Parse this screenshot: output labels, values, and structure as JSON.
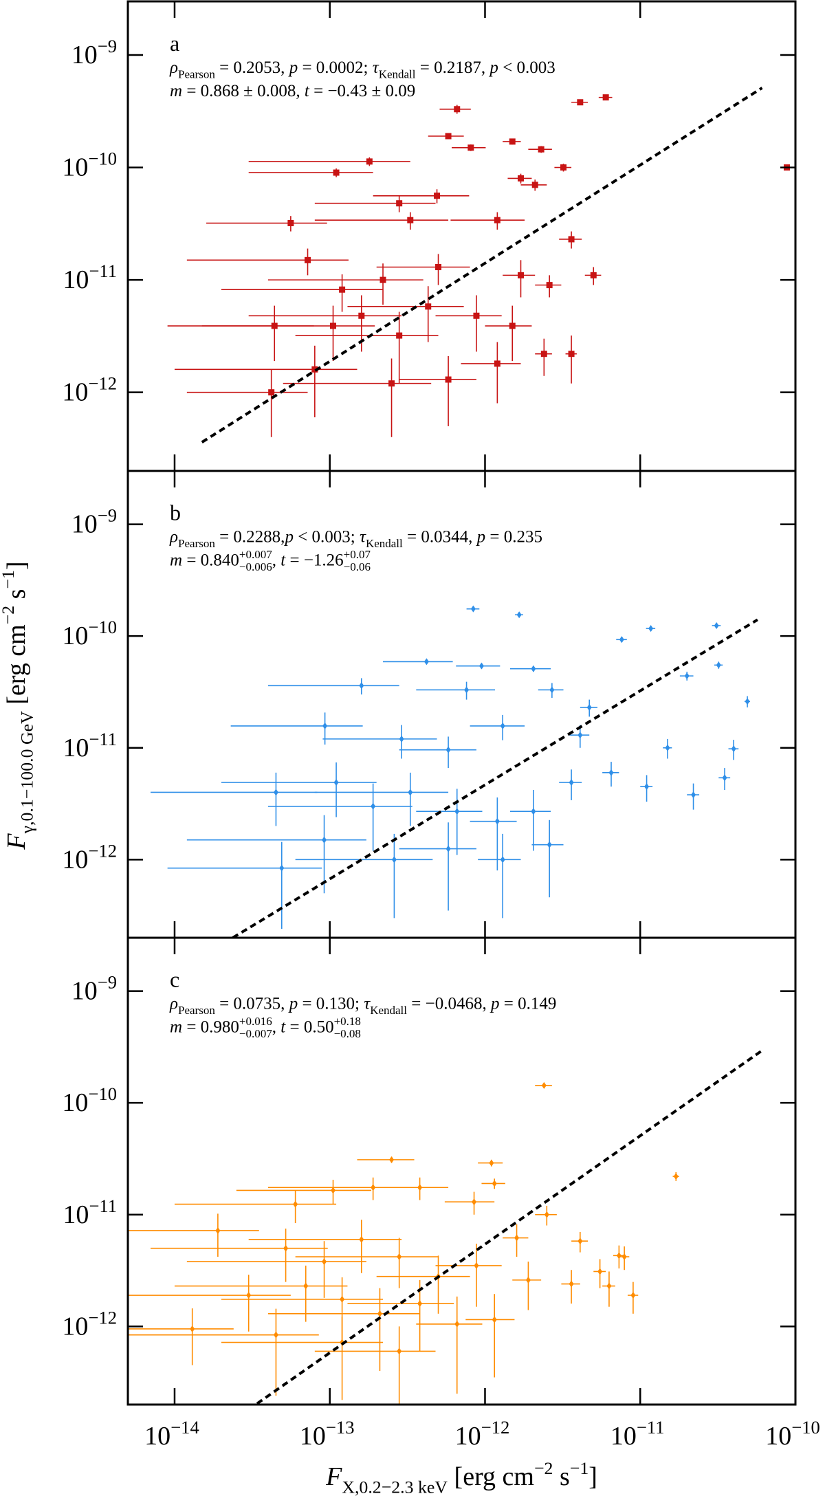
{
  "chart_data": [
    {
      "type": "scatter",
      "label": "a",
      "color": "#c81414",
      "marker": "square",
      "xscale": "log",
      "yscale": "log",
      "xlim": [
        5e-15,
        1e-10
      ],
      "ylim": [
        2e-13,
        3e-09
      ],
      "xticks": [
        1e-14,
        1e-13,
        1e-12,
        1e-11,
        1e-10
      ],
      "yticks": [
        {
          "value": 1e-12,
          "label": "10−12"
        },
        {
          "value": 1e-11,
          "label": "10−11"
        },
        {
          "value": 1e-10,
          "label": "10−10"
        },
        {
          "value": 1e-09,
          "label": "10−9"
        }
      ],
      "stats": [
        [
          {
            "text": "ρ",
            "style": "i"
          },
          {
            "text": "Pearson",
            "style": "sub"
          },
          {
            "text": " = 0.2053, ",
            "style": "n"
          },
          {
            "text": "p",
            "style": "i"
          },
          {
            "text": " = 0.0002; ",
            "style": "n"
          },
          {
            "text": "τ",
            "style": "i"
          },
          {
            "text": "Kendall",
            "style": "sub"
          },
          {
            "text": " = 0.2187, ",
            "style": "n"
          },
          {
            "text": "p",
            "style": "i"
          },
          {
            "text": " < 0.003",
            "style": "n"
          }
        ],
        [
          {
            "text": "m",
            "style": "i"
          },
          {
            "text": " = 0.868 ± 0.008, ",
            "style": "n"
          },
          {
            "text": "t",
            "style": "i"
          },
          {
            "text": " = −0.43 ± 0.09",
            "style": "n"
          }
        ]
      ],
      "fit": {
        "x": [
          1.5e-14,
          6.1e-11
        ],
        "y": [
          3.6e-13,
          5.1e-10
        ]
      },
      "x": [
        6.6e-13,
        4.1e-12,
        6e-12,
        8.8e-11,
        5.8e-13,
        1.5e-12,
        8.1e-13,
        2.3e-12,
        1.8e-13,
        1.1e-13,
        3.2e-12,
        1.7e-12,
        2.1e-12,
        4.9e-13,
        2.8e-13,
        5.6e-14,
        3.3e-13,
        1.2e-12,
        3.6e-12,
        1.7e-12,
        2.6e-12,
        5e-12,
        7.2e-14,
        2.2e-13,
        5e-13,
        4.4e-14,
        1.05e-13,
        1.6e-13,
        2.8e-13,
        4.3e-13,
        8.8e-13,
        1.5e-12,
        3.6e-12,
        2.4e-12,
        4.2e-14,
        8e-14,
        2.5e-13,
        5.8e-13,
        1.2e-12,
        1.2e-13
      ],
      "y": [
        3.3e-10,
        3.8e-10,
        4.2e-10,
        1e-10,
        1.9e-10,
        1.7e-10,
        1.5e-10,
        1.45e-10,
        1.13e-10,
        9e-11,
        1e-10,
        8e-11,
        7e-11,
        5.6e-11,
        4.8e-11,
        3.2e-11,
        3.4e-11,
        3.4e-11,
        2.3e-11,
        1.1e-11,
        9e-12,
        1.1e-11,
        1.5e-11,
        1e-11,
        1.3e-11,
        3.9e-12,
        3.9e-12,
        4.8e-12,
        3.2e-12,
        5.8e-12,
        4.8e-12,
        3.9e-12,
        2.2e-12,
        2.2e-12,
        1e-12,
        1.6e-12,
        1.2e-12,
        1.3e-12,
        1.8e-12,
        8.2e-12
      ],
      "xerr": [
        1.5e-13,
        5e-13,
        6e-13,
        5e-12,
        1.5e-13,
        2e-13,
        2e-13,
        4e-13,
        1.5e-13,
        8e-14,
        4e-13,
        3e-13,
        4e-13,
        3e-13,
        2e-13,
        4e-14,
        2.5e-13,
        6e-13,
        6e-13,
        4e-13,
        5e-13,
        6e-13,
        6e-14,
        1.8e-13,
        3e-13,
        3.5e-14,
        9e-14,
        1.3e-13,
        2.2e-13,
        3e-13,
        4e-13,
        5e-13,
        3e-13,
        3e-13,
        3e-14,
        7e-14,
        2e-13,
        3e-13,
        5e-13,
        1e-13
      ],
      "yerr": [
        3e-11,
        2e-11,
        2e-11,
        5e-12,
        1e-11,
        1e-11,
        1e-11,
        1e-11,
        1e-11,
        8e-12,
        8e-12,
        8e-12,
        8e-12,
        8e-12,
        8e-12,
        5e-12,
        6e-12,
        6e-12,
        4e-12,
        4e-12,
        2e-12,
        2e-12,
        4e-12,
        4e-12,
        4e-12,
        2e-12,
        2e-12,
        2.5e-12,
        2e-12,
        3e-12,
        2.5e-12,
        2e-12,
        1e-12,
        8e-13,
        6e-13,
        1e-12,
        8e-13,
        8e-13,
        1e-12,
        3e-12
      ]
    },
    {
      "type": "scatter",
      "label": "b",
      "color": "#2f8fe8",
      "marker": "diamond",
      "xscale": "log",
      "yscale": "log",
      "xlim": [
        5e-15,
        1e-10
      ],
      "ylim": [
        2e-13,
        3e-09
      ],
      "xticks": [
        1e-14,
        1e-13,
        1e-12,
        1e-11,
        1e-10
      ],
      "yticks": [
        {
          "value": 1e-12,
          "label": "10−12"
        },
        {
          "value": 1e-11,
          "label": "10−11"
        },
        {
          "value": 1e-10,
          "label": "10−10"
        },
        {
          "value": 1e-09,
          "label": "10−9"
        }
      ],
      "stats": [
        [
          {
            "text": "ρ",
            "style": "i"
          },
          {
            "text": "Pearson",
            "style": "sub"
          },
          {
            "text": " = 0.2288,",
            "style": "n"
          },
          {
            "text": "p",
            "style": "i"
          },
          {
            "text": " < 0.003; ",
            "style": "n"
          },
          {
            "text": "τ",
            "style": "i"
          },
          {
            "text": "Kendall",
            "style": "sub"
          },
          {
            "text": " = 0.0344, ",
            "style": "n"
          },
          {
            "text": "p",
            "style": "i"
          },
          {
            "text": " = 0.235",
            "style": "n"
          }
        ],
        [
          {
            "text": "m",
            "style": "i"
          },
          {
            "text": " = 0.840",
            "style": "n"
          },
          {
            "text": "+0.007",
            "style": "sup"
          },
          {
            "text": "−0.006",
            "style": "sub2"
          },
          {
            "text": ", ",
            "style": "n"
          },
          {
            "text": "t",
            "style": "i"
          },
          {
            "text": " = −1.26",
            "style": "n"
          },
          {
            "text": "+0.07",
            "style": "sup"
          },
          {
            "text": "−0.06",
            "style": "sub2"
          }
        ]
      ],
      "fit": {
        "x": [
          2.37e-14,
          5.7e-11
        ],
        "y": [
          2e-13,
          1.4e-10
        ]
      },
      "x": [
        8.4e-13,
        1.66e-12,
        1.17e-11,
        7.6e-12,
        3.1e-11,
        4.2e-13,
        9.5e-13,
        2.05e-12,
        3.2e-11,
        2e-11,
        4.9e-11,
        1.6e-13,
        7.6e-13,
        2.7e-12,
        4.7e-12,
        9.3e-14,
        2.9e-13,
        5.8e-13,
        1.3e-12,
        4.1e-12,
        1.5e-11,
        4e-11,
        4.5e-14,
        1.1e-13,
        1.9e-13,
        3.3e-13,
        6.6e-13,
        1.2e-12,
        2.05e-12,
        3.6e-12,
        6.5e-12,
        1.1e-11,
        2.2e-11,
        3.5e-11,
        4.9e-14,
        9.2e-14,
        2.6e-13,
        5.8e-13,
        1.3e-12,
        2.6e-12
      ],
      "y": [
        1.75e-10,
        1.55e-10,
        1.17e-10,
        9.3e-11,
        1.24e-10,
        5.9e-11,
        5.4e-11,
        5.1e-11,
        5.5e-11,
        4.4e-11,
        2.6e-11,
        3.6e-11,
        3.3e-11,
        3.3e-11,
        2.3e-11,
        1.57e-11,
        1.2e-11,
        9.6e-12,
        1.57e-11,
        1.3e-11,
        1e-11,
        9.8e-12,
        4e-12,
        4.9e-12,
        3e-12,
        4e-12,
        2.7e-12,
        2.2e-12,
        2.7e-12,
        4.9e-12,
        6e-12,
        4.5e-12,
        3.8e-12,
        5.4e-12,
        8.4e-13,
        1.5e-12,
        1e-12,
        1.25e-12,
        1e-12,
        1.36e-12
      ],
      "xerr": [
        8e-14,
        1e-13,
        8e-13,
        6e-13,
        2e-12,
        2e-13,
        3e-13,
        6e-13,
        2e-12,
        2e-12,
        2e-12,
        1.2e-13,
        4e-13,
        5e-13,
        6e-13,
        7e-14,
        2e-13,
        3e-13,
        5e-13,
        6e-13,
        1e-12,
        3e-12,
        3.8e-14,
        9e-14,
        1.5e-13,
        2.5e-13,
        3e-13,
        4e-13,
        6e-13,
        6e-13,
        8e-13,
        1e-12,
        2e-12,
        3e-12,
        4e-14,
        8e-14,
        2e-13,
        3e-13,
        4e-13,
        6e-13
      ],
      "yerr": [
        5e-12,
        5e-12,
        4e-12,
        4e-12,
        4e-12,
        3e-12,
        3e-12,
        3e-12,
        4e-12,
        4e-12,
        3e-12,
        6e-12,
        6e-12,
        5e-12,
        4e-12,
        5e-12,
        4e-12,
        3e-12,
        4e-12,
        3e-12,
        2e-12,
        2e-12,
        2e-12,
        2.5e-12,
        1.8e-12,
        2e-12,
        1.6e-12,
        1.4e-12,
        1.5e-12,
        1.5e-12,
        1.5e-12,
        1.2e-12,
        1e-12,
        1.2e-12,
        6e-13,
        1e-12,
        7e-13,
        9e-13,
        7e-13,
        9e-13
      ]
    },
    {
      "type": "scatter",
      "label": "c",
      "color": "#ff8c00",
      "marker": "diamond",
      "xscale": "log",
      "yscale": "log",
      "xlim": [
        5e-15,
        1e-10
      ],
      "ylim": [
        2e-13,
        3e-09
      ],
      "xticks": [
        {
          "value": 1e-14,
          "label": "10−14"
        },
        {
          "value": 1e-13,
          "label": "10−13"
        },
        {
          "value": 1e-12,
          "label": "10−12"
        },
        {
          "value": 1e-11,
          "label": "10−11"
        },
        {
          "value": 1e-10,
          "label": "10−10"
        }
      ],
      "yticks": [
        {
          "value": 1e-12,
          "label": "10−12"
        },
        {
          "value": 1e-11,
          "label": "10−11"
        },
        {
          "value": 1e-10,
          "label": "10−10"
        },
        {
          "value": 1e-09,
          "label": "10−9"
        }
      ],
      "stats": [
        [
          {
            "text": "ρ",
            "style": "i"
          },
          {
            "text": "Pearson",
            "style": "sub"
          },
          {
            "text": " = 0.0735, ",
            "style": "n"
          },
          {
            "text": "p",
            "style": "i"
          },
          {
            "text": " = 0.130; ",
            "style": "n"
          },
          {
            "text": "τ",
            "style": "i"
          },
          {
            "text": "Kendall",
            "style": "sub"
          },
          {
            "text": " = −0.0468, ",
            "style": "n"
          },
          {
            "text": "p",
            "style": "i"
          },
          {
            "text": " = 0.149",
            "style": "n"
          }
        ],
        [
          {
            "text": "m",
            "style": "i"
          },
          {
            "text": " = 0.980",
            "style": "n"
          },
          {
            "text": "+0.016",
            "style": "sup"
          },
          {
            "text": "−0.007",
            "style": "sub2"
          },
          {
            "text": ", ",
            "style": "n"
          },
          {
            "text": "t",
            "style": "i"
          },
          {
            "text": " = 0.50",
            "style": "n"
          },
          {
            "text": "+0.18",
            "style": "sup"
          },
          {
            "text": "−0.08",
            "style": "sub2"
          }
        ]
      ],
      "fit": {
        "x": [
          3.4e-14,
          6.1e-11
        ],
        "y": [
          2.04e-13,
          2.94e-10
        ]
      },
      "x": [
        2.4e-12,
        1.7e-11,
        1.1e-12,
        2.5e-13,
        1.15e-12,
        1.9e-13,
        3.8e-13,
        1.05e-13,
        6e-14,
        8.5e-13,
        2.5e-12,
        1.6e-12,
        7.3e-12,
        4.1e-12,
        7.9e-12,
        5.5e-12,
        3.6e-12,
        9e-12,
        6.3e-12,
        1.9e-12,
        1.9e-14,
        5.2e-14,
        9.2e-14,
        1.6e-13,
        2.8e-13,
        5e-13,
        8.8e-13,
        3e-14,
        7e-14,
        1.2e-13,
        2.1e-13,
        3.8e-13,
        6.6e-13,
        1.15e-12,
        1.3e-14,
        4.5e-14,
        1.2e-13,
        2.8e-13
      ],
      "y": [
        1.43e-10,
        2.2e-11,
        2.9e-11,
        3.1e-11,
        1.9e-11,
        1.75e-11,
        1.75e-11,
        1.65e-11,
        1.24e-11,
        1.3e-11,
        1e-11,
        6.2e-12,
        4.3e-12,
        5.8e-12,
        4.2e-12,
        3.1e-12,
        2.4e-12,
        1.9e-12,
        2.3e-12,
        2.6e-12,
        7.2e-12,
        5e-12,
        3.8e-12,
        6e-12,
        4.2e-12,
        2.8e-12,
        3.5e-12,
        1.9e-12,
        2.3e-12,
        1.75e-12,
        1.3e-12,
        1.6e-12,
        1.05e-12,
        1.15e-12,
        9.5e-13,
        8.4e-13,
        7.2e-13,
        6e-13
      ],
      "xerr": [
        3e-13,
        8e-13,
        2e-13,
        1e-13,
        2e-13,
        1.5e-13,
        2e-13,
        8e-14,
        5e-14,
        3e-13,
        4e-13,
        3e-13,
        6e-13,
        5e-13,
        6e-13,
        5e-13,
        5e-13,
        7e-13,
        6e-13,
        4e-13,
        1.6e-14,
        4.5e-14,
        8e-14,
        1.3e-13,
        2.2e-13,
        3e-13,
        4e-13,
        2.6e-14,
        6e-14,
        1e-13,
        1.7e-13,
        2.5e-13,
        3e-13,
        4e-13,
        1.1e-14,
        4e-14,
        1e-13,
        2e-13
      ],
      "yerr": [
        3e-12,
        2e-12,
        2e-12,
        2e-12,
        2e-12,
        4e-12,
        4e-12,
        4e-12,
        4e-12,
        3e-12,
        2e-12,
        2e-12,
        1e-12,
        1.2e-12,
        1e-12,
        9e-13,
        8e-13,
        6e-13,
        8e-13,
        1.2e-12,
        3e-12,
        2.5e-12,
        2e-12,
        3e-12,
        2e-12,
        1.5e-12,
        2e-12,
        1e-12,
        1.2e-12,
        1e-12,
        9e-13,
        1e-12,
        8e-13,
        8e-13,
        5e-13,
        6e-13,
        5e-13,
        4e-13
      ]
    }
  ],
  "axes": {
    "xlabel": [
      {
        "text": "F",
        "style": "i"
      },
      {
        "text": "X,0.2−2.3 keV",
        "style": "sub"
      },
      {
        "text": " [erg cm",
        "style": "n"
      },
      {
        "text": "−2",
        "style": "sup"
      },
      {
        "text": " s",
        "style": "n"
      },
      {
        "text": "−1",
        "style": "sup"
      },
      {
        "text": "]",
        "style": "n"
      }
    ],
    "ylabel": [
      {
        "text": "F",
        "style": "i"
      },
      {
        "text": "γ,0.1−100.0 GeV",
        "style": "sub"
      },
      {
        "text": " [erg cm",
        "style": "n"
      },
      {
        "text": "−2",
        "style": "sup"
      },
      {
        "text": " s",
        "style": "n"
      },
      {
        "text": "−1",
        "style": "sup"
      },
      {
        "text": "]",
        "style": "n"
      }
    ]
  }
}
